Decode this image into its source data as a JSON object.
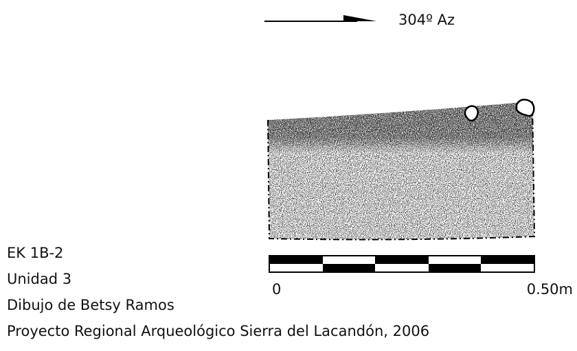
{
  "direction": {
    "label": "304º Az"
  },
  "scale": {
    "start": "0",
    "end": "0.50m"
  },
  "caption": {
    "lines": [
      "EK 1B-2",
      "Unidad 3",
      "Dibujo de Betsy Ramos",
      "Proyecto Regional Arqueológico Sierra del Lacandón, 2006"
    ]
  }
}
